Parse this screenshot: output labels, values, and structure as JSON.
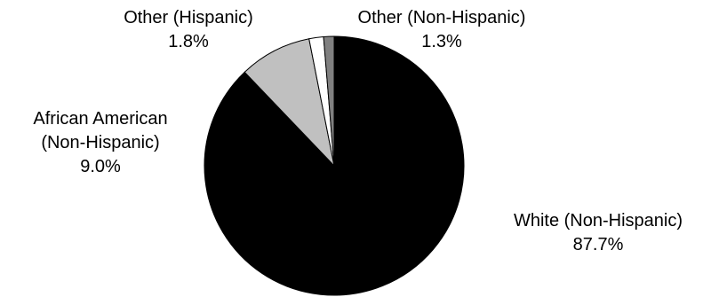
{
  "chart_data": {
    "type": "pie",
    "start_angle_deg": 0,
    "direction": "clockwise",
    "slices": [
      {
        "label": "White (Non-Hispanic)",
        "value_label": "87.7%",
        "value": 87.7,
        "color": "#000000"
      },
      {
        "label": "African American (Non-Hispanic)",
        "value_label": "9.0%",
        "value": 9.0,
        "color": "#c0c0c0"
      },
      {
        "label": "Other (Hispanic)",
        "value_label": "1.8%",
        "value": 1.8,
        "color": "#ffffff"
      },
      {
        "label": "Other (Non-Hispanic)",
        "value_label": "1.3%",
        "value": 1.3,
        "color": "#808080"
      }
    ],
    "labels": [
      {
        "lines": [
          "White (Non-Hispanic)",
          "87.7%"
        ]
      },
      {
        "lines": [
          "African American",
          "(Non-Hispanic)",
          "9.0%"
        ]
      },
      {
        "lines": [
          "Other (Hispanic)",
          "1.8%"
        ]
      },
      {
        "lines": [
          "Other (Non-Hispanic)",
          "1.3%"
        ]
      }
    ]
  }
}
